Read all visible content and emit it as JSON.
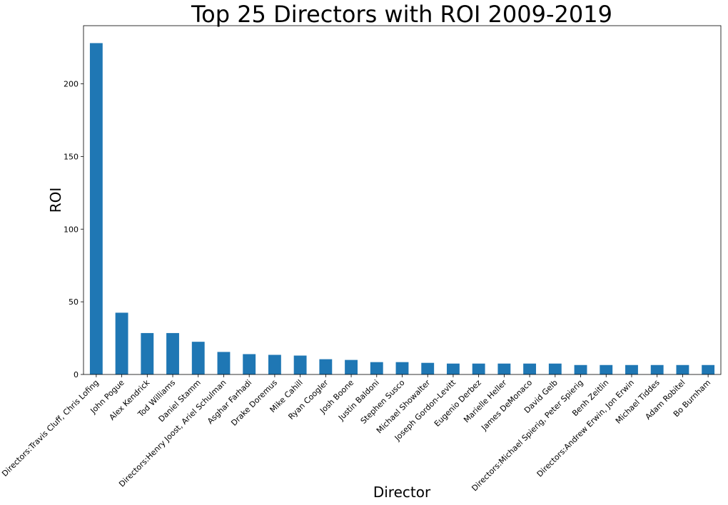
{
  "chart_data": {
    "type": "bar",
    "title": "Top 25 Directors with ROI 2009-2019",
    "xlabel": "Director",
    "ylabel": "ROI",
    "ylim": [
      0,
      240
    ],
    "yticks": [
      0,
      50,
      100,
      150,
      200
    ],
    "grid": false,
    "bar_color": "#1f77b4",
    "categories": [
      "Directors:Travis Cluff, Chris Lofing",
      "John Pogue",
      "Alex Kendrick",
      "Tod Williams",
      "Daniel Stamm",
      "Directors:Henry Joost, Ariel Schulman",
      "Asghar Farhadi",
      "Drake Doremus",
      "Mike Cahill",
      "Ryan Coogler",
      "Josh Boone",
      "Justin Baldoni",
      "Stephen Susco",
      "Michael Showalter",
      "Joseph Gordon-Levitt",
      "Eugenio Derbez",
      "Marielle Heller",
      "James DeMonaco",
      "David Gelb",
      "Directors:Michael Spierig, Peter Spierig",
      "Benh Zeitlin",
      "Directors:Andrew Erwin, Jon Erwin",
      "Michael Tiddes",
      "Adam Robitel",
      "Bo Burnham"
    ],
    "values": [
      228,
      42.5,
      28.5,
      28.5,
      22.5,
      15.5,
      14,
      13.5,
      13,
      10.5,
      10,
      8.5,
      8.5,
      8,
      7.5,
      7.5,
      7.5,
      7.5,
      7.5,
      6.5,
      6.5,
      6.5,
      6.5,
      6.5,
      6.5
    ]
  }
}
